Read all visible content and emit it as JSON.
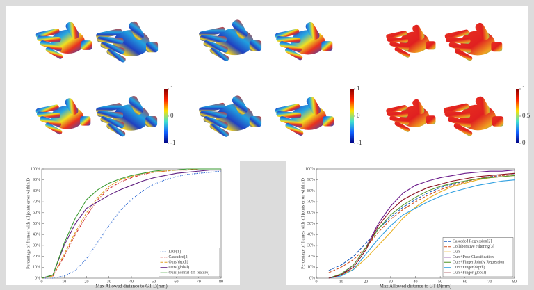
{
  "colorbars": [
    {
      "lim": [
        -1,
        1
      ],
      "ticks": [
        1,
        0,
        -1
      ]
    },
    {
      "lim": [
        -1,
        1
      ],
      "ticks": [
        1,
        0,
        -1
      ]
    },
    {
      "lim": [
        0,
        1
      ],
      "ticks": [
        1,
        0.5,
        0
      ]
    }
  ],
  "chart_data": [
    {
      "type": "line",
      "x_label": "Max Allowed distance to GT D(mm)",
      "y_label": "Percentage of frames with all joints error within D",
      "x": [
        0,
        5,
        10,
        15,
        20,
        25,
        30,
        35,
        40,
        45,
        50,
        55,
        60,
        65,
        70,
        75,
        80
      ],
      "xlim": [
        0,
        80
      ],
      "xticks": [
        0,
        10,
        20,
        30,
        40,
        50,
        60,
        70,
        80
      ],
      "ylim": [
        0,
        100
      ],
      "yticks": [
        {
          "value": 0,
          "label": "0%"
        },
        {
          "value": 10,
          "label": "10%"
        },
        {
          "value": 20,
          "label": "20%"
        },
        {
          "value": 30,
          "label": "30%"
        },
        {
          "value": 40,
          "label": "40%"
        },
        {
          "value": 50,
          "label": "50%"
        },
        {
          "value": 60,
          "label": "60%"
        },
        {
          "value": 70,
          "label": "70%"
        },
        {
          "value": 80,
          "label": "80%"
        },
        {
          "value": 90,
          "label": "90%"
        },
        {
          "value": 100,
          "label": "100%"
        }
      ],
      "legend": "lower right",
      "series": [
        {
          "name": "LRF[1]",
          "color": "#1f5fd0",
          "style": "dotted",
          "values": [
            0,
            0,
            2,
            7,
            18,
            33,
            48,
            62,
            72,
            80,
            86,
            90,
            93,
            95,
            96,
            97,
            98
          ]
        },
        {
          "name": "Cascaded[2]",
          "color": "#d03030",
          "style": "dashdot",
          "values": [
            0,
            2,
            20,
            40,
            57,
            72,
            82,
            88,
            92,
            95,
            97,
            98,
            99,
            99,
            100,
            100,
            100
          ]
        },
        {
          "name": "Ours(depth)",
          "color": "#e0a020",
          "style": "dashed",
          "values": [
            0,
            2,
            22,
            42,
            60,
            74,
            84,
            90,
            93,
            96,
            97,
            98,
            99,
            99,
            100,
            100,
            100
          ]
        },
        {
          "name": "Ours(global)",
          "color": "#602080",
          "style": "solid",
          "values": [
            0,
            3,
            30,
            50,
            64,
            70,
            76,
            81,
            85,
            89,
            92,
            94,
            96,
            97,
            98,
            99,
            99
          ]
        },
        {
          "name": "Ours(normal dif. feature)",
          "color": "#3a9a30",
          "style": "solid",
          "values": [
            0,
            3,
            32,
            55,
            72,
            81,
            87,
            91,
            94,
            96,
            98,
            99,
            99,
            100,
            100,
            100,
            100
          ]
        }
      ]
    },
    {
      "type": "line",
      "x_label": "Max Allowed distance to GT D(mm)",
      "y_label": "Percentage of frames with all joints error within D",
      "x": [
        5,
        10,
        15,
        20,
        25,
        30,
        35,
        40,
        45,
        50,
        55,
        60,
        65,
        70,
        75,
        80
      ],
      "xlim": [
        0,
        80
      ],
      "xticks": [
        0,
        10,
        20,
        30,
        40,
        50,
        60,
        70,
        80
      ],
      "ylim": [
        0,
        100
      ],
      "yticks": [
        {
          "value": 0,
          "label": "0%"
        },
        {
          "value": 10,
          "label": "10%"
        },
        {
          "value": 20,
          "label": "20%"
        },
        {
          "value": 30,
          "label": "30%"
        },
        {
          "value": 40,
          "label": "40%"
        },
        {
          "value": 50,
          "label": "50%"
        },
        {
          "value": 60,
          "label": "60%"
        },
        {
          "value": 70,
          "label": "70%"
        },
        {
          "value": 80,
          "label": "80%"
        },
        {
          "value": 90,
          "label": "90%"
        },
        {
          "value": 100,
          "label": "100%"
        }
      ],
      "legend": "lower right",
      "series": [
        {
          "name": "Cascaded Regression[2]",
          "color": "#1f5fbf",
          "style": "dashed",
          "values": [
            7,
            12,
            20,
            32,
            45,
            56,
            65,
            72,
            78,
            83,
            86,
            89,
            91,
            93,
            94,
            95
          ]
        },
        {
          "name": "Collaborative Filtering[3]",
          "color": "#d05020",
          "style": "dashed",
          "values": [
            5,
            10,
            17,
            28,
            42,
            54,
            63,
            70,
            76,
            81,
            85,
            88,
            91,
            93,
            94,
            95
          ]
        },
        {
          "name": "Ours",
          "color": "#e8b020",
          "style": "solid",
          "values": [
            0,
            3,
            8,
            18,
            30,
            42,
            55,
            65,
            73,
            79,
            84,
            87,
            90,
            92,
            93,
            94
          ]
        },
        {
          "name": "Ours+Pose Classification",
          "color": "#6a1a8a",
          "style": "solid",
          "values": [
            0,
            3,
            12,
            28,
            50,
            66,
            78,
            85,
            89,
            92,
            94,
            96,
            97,
            98,
            98,
            99
          ]
        },
        {
          "name": "Ours+Finger Jointly Regression",
          "color": "#5a9a30",
          "style": "solid",
          "values": [
            0,
            4,
            12,
            28,
            45,
            58,
            67,
            74,
            80,
            84,
            87,
            89,
            91,
            92,
            93,
            94
          ]
        },
        {
          "name": "Ours+Finger(depth)",
          "color": "#30a0e0",
          "style": "solid",
          "values": [
            0,
            2,
            8,
            22,
            36,
            48,
            58,
            64,
            70,
            75,
            79,
            82,
            85,
            87,
            89,
            90
          ]
        },
        {
          "name": "Ours+Finger(global)",
          "color": "#8a1020",
          "style": "solid",
          "values": [
            0,
            3,
            10,
            26,
            48,
            62,
            72,
            78,
            83,
            86,
            89,
            91,
            93,
            94,
            95,
            96
          ]
        }
      ]
    }
  ]
}
